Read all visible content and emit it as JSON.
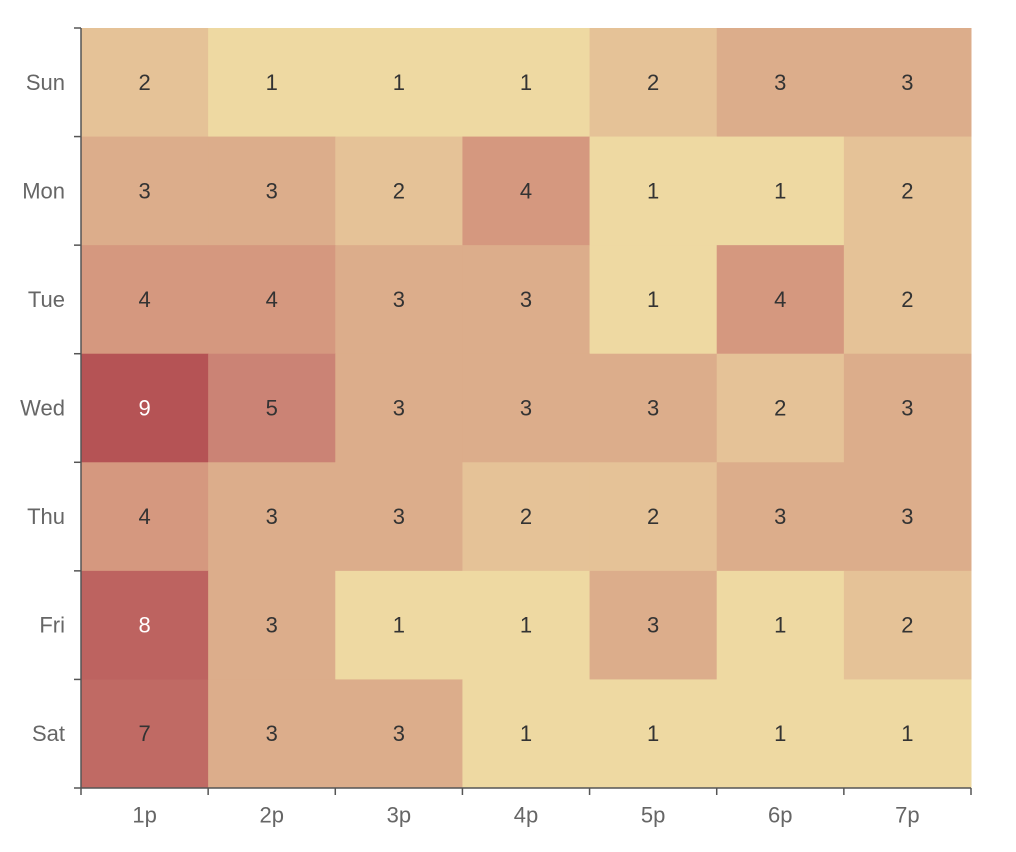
{
  "chart_data": {
    "type": "heatmap",
    "title": "",
    "xlabel": "",
    "ylabel": "",
    "x_categories": [
      "1p",
      "2p",
      "3p",
      "4p",
      "5p",
      "6p",
      "7p"
    ],
    "y_categories": [
      "Sun",
      "Mon",
      "Tue",
      "Wed",
      "Thu",
      "Fri",
      "Sat"
    ],
    "values": [
      [
        2,
        1,
        1,
        1,
        2,
        3,
        3
      ],
      [
        3,
        3,
        2,
        4,
        1,
        1,
        2
      ],
      [
        4,
        4,
        3,
        3,
        1,
        4,
        2
      ],
      [
        9,
        5,
        3,
        3,
        3,
        2,
        3
      ],
      [
        4,
        3,
        3,
        2,
        2,
        3,
        3
      ],
      [
        8,
        3,
        1,
        1,
        3,
        1,
        2
      ],
      [
        7,
        3,
        3,
        1,
        1,
        1,
        1
      ]
    ],
    "show_values": true,
    "grid": false,
    "color_scale": {
      "low": "#eed9a2",
      "high": "#b55355",
      "stops": {
        "1": "#eed9a2",
        "2": "#e5c297",
        "3": "#dcad8b",
        "4": "#d5987f",
        "5": "#cb8375",
        "7": "#c06a64",
        "8": "#bd6360",
        "9": "#b55355"
      }
    },
    "label_colors": {
      "dark": "#333333",
      "light": "#ffffff"
    }
  }
}
